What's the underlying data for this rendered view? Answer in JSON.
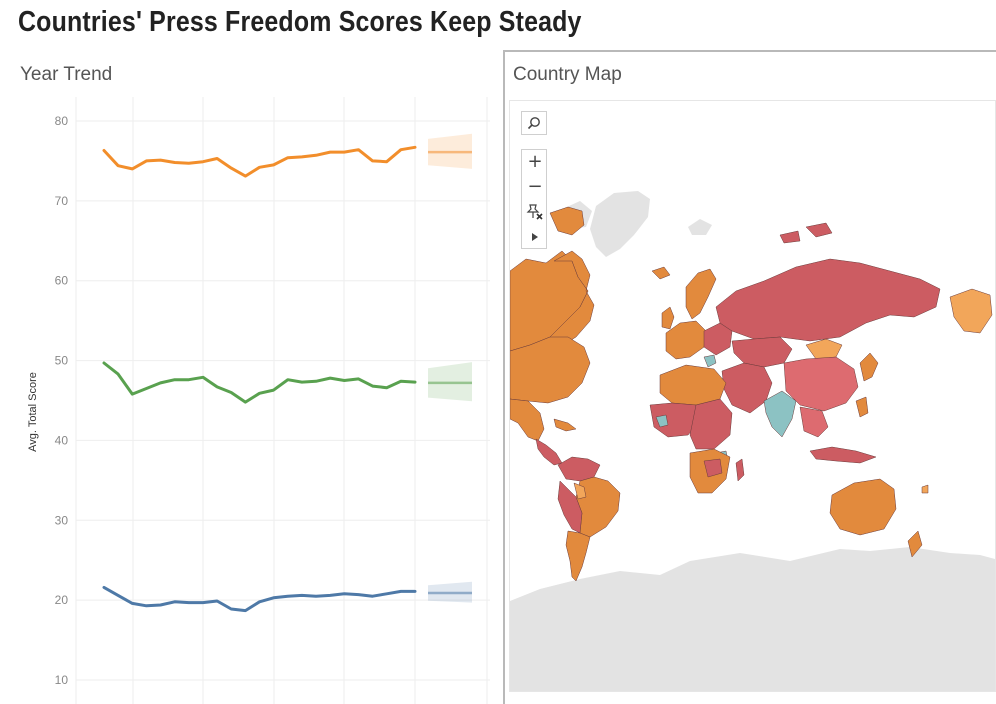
{
  "dashboard": {
    "title": "Countries' Press Freedom Scores Keep Steady"
  },
  "trend_sheet": {
    "title": "Year Trend"
  },
  "map_sheet": {
    "title": "Country Map",
    "tools": {
      "search_icon": "magnifier-icon",
      "zoom_in_label": "+",
      "zoom_out_label": "−",
      "pin_icon": "pin-x-icon",
      "expand_icon": "play-triangle-icon"
    },
    "colors": {
      "free": "#8cc2c3",
      "partly_free": "#e28a3d",
      "not_free": "#cc5c62",
      "highlight_orange": "#f2a65a",
      "land_no_data": "#e3e3e3"
    }
  },
  "chart_data": {
    "type": "line",
    "ylabel": "Avg. Total Score",
    "ylim": [
      7,
      83
    ],
    "yticks": [
      10,
      20,
      30,
      40,
      50,
      60,
      70,
      80
    ],
    "x": [
      1,
      2,
      3,
      4,
      5,
      6,
      7,
      8,
      9,
      10,
      11,
      12,
      13,
      14,
      15,
      16,
      17,
      18,
      19,
      20,
      21,
      22,
      23
    ],
    "grid": true,
    "series": [
      {
        "color": "#f28e2b",
        "values": [
          76.3,
          74.4,
          74.0,
          75.0,
          75.1,
          74.8,
          74.7,
          74.9,
          75.3,
          74.1,
          73.1,
          74.2,
          74.5,
          75.4,
          75.5,
          75.7,
          76.1,
          76.1,
          76.4,
          75.0,
          74.9,
          76.4,
          76.7
        ],
        "forecast": {
          "center": 76.1,
          "low": 74.0,
          "high": 78.4
        }
      },
      {
        "color": "#59a14f",
        "values": [
          49.7,
          48.3,
          45.8,
          46.5,
          47.2,
          47.6,
          47.6,
          47.9,
          46.7,
          46.0,
          44.8,
          45.9,
          46.3,
          47.6,
          47.3,
          47.4,
          47.8,
          47.5,
          47.7,
          46.8,
          46.6,
          47.4,
          47.3
        ],
        "forecast": {
          "center": 47.2,
          "low": 44.9,
          "high": 49.8
        }
      },
      {
        "color": "#4e79a7",
        "values": [
          21.6,
          20.6,
          19.6,
          19.3,
          19.4,
          19.8,
          19.7,
          19.7,
          19.9,
          18.9,
          18.7,
          19.8,
          20.3,
          20.5,
          20.6,
          20.5,
          20.6,
          20.8,
          20.7,
          20.5,
          20.8,
          21.1,
          21.1
        ],
        "forecast": {
          "center": 20.9,
          "low": 19.7,
          "high": 22.3
        }
      }
    ]
  }
}
